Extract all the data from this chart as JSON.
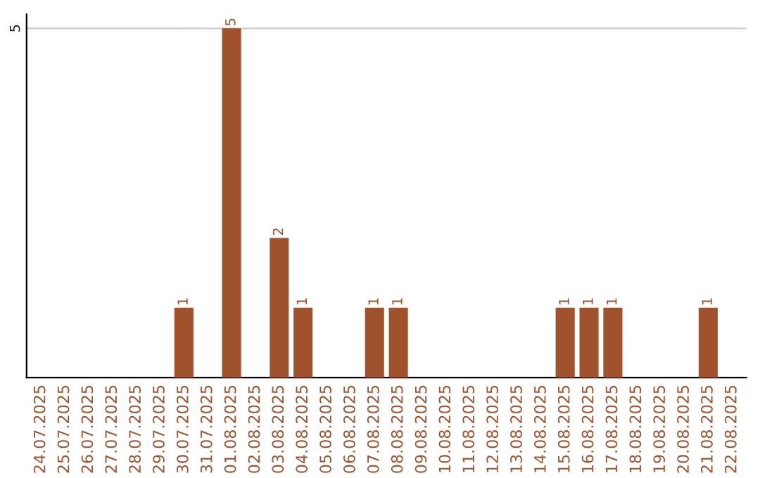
{
  "chart_data": {
    "type": "bar",
    "categories": [
      "24.07.2025",
      "25.07.2025",
      "26.07.2025",
      "27.07.2025",
      "28.07.2025",
      "29.07.2025",
      "30.07.2025",
      "31.07.2025",
      "01.08.2025",
      "02.08.2025",
      "03.08.2025",
      "04.08.2025",
      "05.08.2025",
      "06.08.2025",
      "07.08.2025",
      "08.08.2025",
      "09.08.2025",
      "10.08.2025",
      "11.08.2025",
      "12.08.2025",
      "13.08.2025",
      "14.08.2025",
      "15.08.2025",
      "16.08.2025",
      "17.08.2025",
      "18.08.2025",
      "19.08.2025",
      "20.08.2025",
      "21.08.2025",
      "22.08.2025"
    ],
    "values": [
      0,
      0,
      0,
      0,
      0,
      0,
      1,
      0,
      5,
      0,
      2,
      1,
      0,
      0,
      1,
      1,
      0,
      0,
      0,
      0,
      0,
      0,
      1,
      1,
      1,
      0,
      0,
      0,
      1,
      0
    ],
    "value_labels": [
      null,
      null,
      null,
      null,
      null,
      null,
      "1",
      null,
      "5",
      null,
      "2",
      "1",
      null,
      null,
      "1",
      "1",
      null,
      null,
      null,
      null,
      null,
      null,
      "1",
      "1",
      "1",
      null,
      null,
      null,
      "1",
      null
    ],
    "color": "#a0522d",
    "ylim": [
      0,
      5.2
    ],
    "yticks": [
      5
    ],
    "grid": "y",
    "legend": false
  }
}
